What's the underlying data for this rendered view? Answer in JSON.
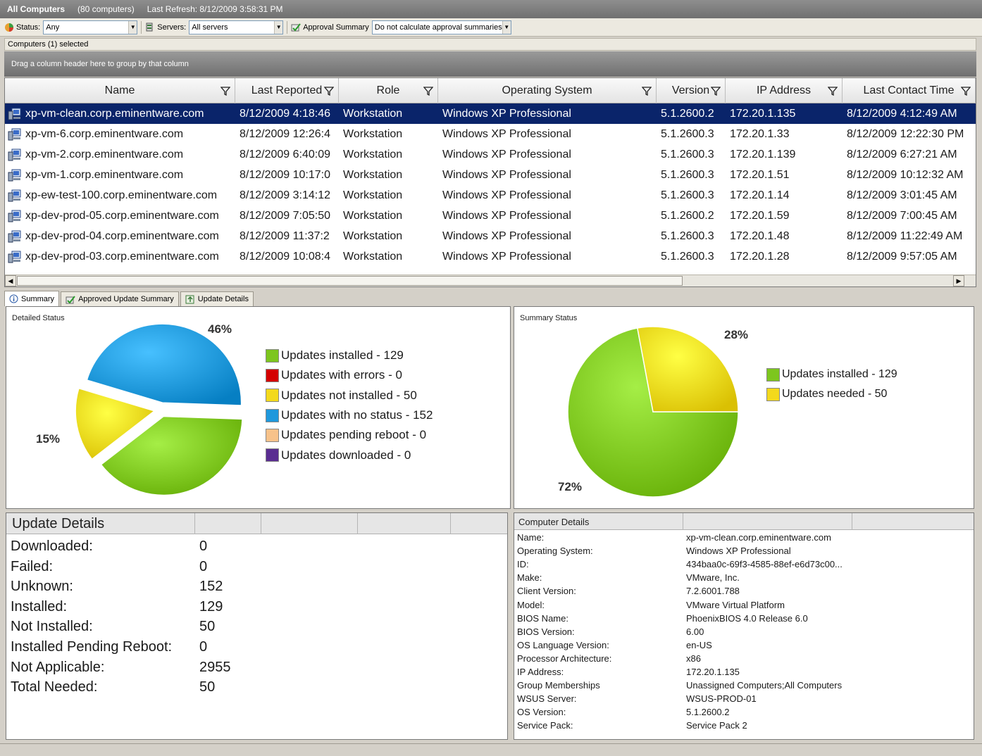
{
  "titlebar": {
    "title": "All Computers",
    "count": "(80 computers)",
    "refresh": "Last Refresh: 8/12/2009 3:58:31 PM"
  },
  "toolbar": {
    "status_label": "Status:",
    "status_value": "Any",
    "servers_label": "Servers:",
    "servers_value": "All servers",
    "approval_label": "Approval Summary",
    "approval_value": "Do not calculate approval summaries"
  },
  "grid_title": "Computers  (1) selected",
  "drag_hint": "Drag a column header here to group by that column",
  "columns": [
    "Name",
    "Last Reported",
    "Role",
    "Operating System",
    "Version",
    "IP Address",
    "Last Contact Time"
  ],
  "rows": [
    {
      "name": "xp-vm-clean.corp.eminentware.com",
      "last_reported": "8/12/2009 4:18:46",
      "role": "Workstation",
      "os": "Windows XP Professional",
      "version": "5.1.2600.2",
      "ip": "172.20.1.135",
      "last_contact": "8/12/2009 4:12:49 AM"
    },
    {
      "name": "xp-vm-6.corp.eminentware.com",
      "last_reported": "8/12/2009 12:26:4",
      "role": "Workstation",
      "os": "Windows XP Professional",
      "version": "5.1.2600.3",
      "ip": "172.20.1.33",
      "last_contact": "8/12/2009 12:22:30 PM"
    },
    {
      "name": "xp-vm-2.corp.eminentware.com",
      "last_reported": "8/12/2009 6:40:09",
      "role": "Workstation",
      "os": "Windows XP Professional",
      "version": "5.1.2600.3",
      "ip": "172.20.1.139",
      "last_contact": "8/12/2009 6:27:21 AM"
    },
    {
      "name": "xp-vm-1.corp.eminentware.com",
      "last_reported": "8/12/2009 10:17:0",
      "role": "Workstation",
      "os": "Windows XP Professional",
      "version": "5.1.2600.3",
      "ip": "172.20.1.51",
      "last_contact": "8/12/2009 10:12:32 AM"
    },
    {
      "name": "xp-ew-test-100.corp.eminentware.com",
      "last_reported": "8/12/2009 3:14:12",
      "role": "Workstation",
      "os": "Windows XP Professional",
      "version": "5.1.2600.3",
      "ip": "172.20.1.14",
      "last_contact": "8/12/2009 3:01:45 AM"
    },
    {
      "name": "xp-dev-prod-05.corp.eminentware.com",
      "last_reported": "8/12/2009 7:05:50",
      "role": "Workstation",
      "os": "Windows XP Professional",
      "version": "5.1.2600.2",
      "ip": "172.20.1.59",
      "last_contact": "8/12/2009 7:00:45 AM"
    },
    {
      "name": "xp-dev-prod-04.corp.eminentware.com",
      "last_reported": "8/12/2009 11:37:2",
      "role": "Workstation",
      "os": "Windows XP Professional",
      "version": "5.1.2600.3",
      "ip": "172.20.1.48",
      "last_contact": "8/12/2009 11:22:49 AM"
    },
    {
      "name": "xp-dev-prod-03.corp.eminentware.com",
      "last_reported": "8/12/2009 10:08:4",
      "role": "Workstation",
      "os": "Windows XP Professional",
      "version": "5.1.2600.3",
      "ip": "172.20.1.28",
      "last_contact": "8/12/2009 9:57:05 AM"
    }
  ],
  "tabs": [
    "Summary",
    "Approved Update Summary",
    "Update Details"
  ],
  "detailed_status": {
    "title": "Detailed Status",
    "pct_labels": [
      "46%",
      "15%"
    ],
    "legend": [
      {
        "label": "Updates installed - 129",
        "color": "#7dc61e"
      },
      {
        "label": "Updates with errors - 0",
        "color": "#d40000"
      },
      {
        "label": "Updates not installed - 50",
        "color": "#f3d91c"
      },
      {
        "label": "Updates with no status - 152",
        "color": "#1f98dc"
      },
      {
        "label": "Updates pending reboot - 0",
        "color": "#f7c28a"
      },
      {
        "label": "Updates downloaded - 0",
        "color": "#5a2d91"
      }
    ]
  },
  "summary_status": {
    "title": "Summary Status",
    "pct_labels": [
      "28%",
      "72%"
    ],
    "legend": [
      {
        "label": "Updates installed - 129",
        "color": "#7dc61e"
      },
      {
        "label": "Updates needed - 50",
        "color": "#f3d91c"
      }
    ]
  },
  "chart_data": [
    {
      "type": "pie",
      "title": "Detailed Status",
      "categories": [
        "Updates installed",
        "Updates with errors",
        "Updates not installed",
        "Updates with no status",
        "Updates pending reboot",
        "Updates downloaded"
      ],
      "values": [
        129,
        0,
        50,
        152,
        0,
        0
      ]
    },
    {
      "type": "pie",
      "title": "Summary Status",
      "categories": [
        "Updates installed",
        "Updates needed"
      ],
      "values": [
        129,
        50
      ]
    }
  ],
  "update_details": {
    "title": "Update Details",
    "rows": [
      {
        "k": "Downloaded:",
        "v": "0"
      },
      {
        "k": "Failed:",
        "v": "0"
      },
      {
        "k": "Unknown:",
        "v": "152"
      },
      {
        "k": "Installed:",
        "v": "129"
      },
      {
        "k": "Not Installed:",
        "v": "50"
      },
      {
        "k": "Installed Pending Reboot:",
        "v": "0"
      },
      {
        "k": "Not Applicable:",
        "v": "2955"
      },
      {
        "k": "Total Needed:",
        "v": "50"
      }
    ]
  },
  "computer_details": {
    "title": "Computer Details",
    "rows": [
      {
        "k": "Name:",
        "v": "xp-vm-clean.corp.eminentware.com"
      },
      {
        "k": "Operating System:",
        "v": "Windows XP Professional"
      },
      {
        "k": "ID:",
        "v": "434baa0c-69f3-4585-88ef-e6d73c00..."
      },
      {
        "k": "Make:",
        "v": "VMware, Inc."
      },
      {
        "k": "Client Version:",
        "v": "7.2.6001.788"
      },
      {
        "k": "Model:",
        "v": "VMware Virtual Platform"
      },
      {
        "k": "BIOS Name:",
        "v": "PhoenixBIOS 4.0 Release 6.0"
      },
      {
        "k": "BIOS Version:",
        "v": "6.00"
      },
      {
        "k": "OS Language Version:",
        "v": "en-US"
      },
      {
        "k": "Processor Architecture:",
        "v": "x86"
      },
      {
        "k": "IP Address:",
        "v": "172.20.1.135"
      },
      {
        "k": "Group Memberships",
        "v": "Unassigned Computers;All Computers"
      },
      {
        "k": "WSUS Server:",
        "v": "WSUS-PROD-01"
      },
      {
        "k": "OS Version:",
        "v": "5.1.2600.2"
      },
      {
        "k": "Service Pack:",
        "v": "Service Pack 2"
      }
    ]
  }
}
